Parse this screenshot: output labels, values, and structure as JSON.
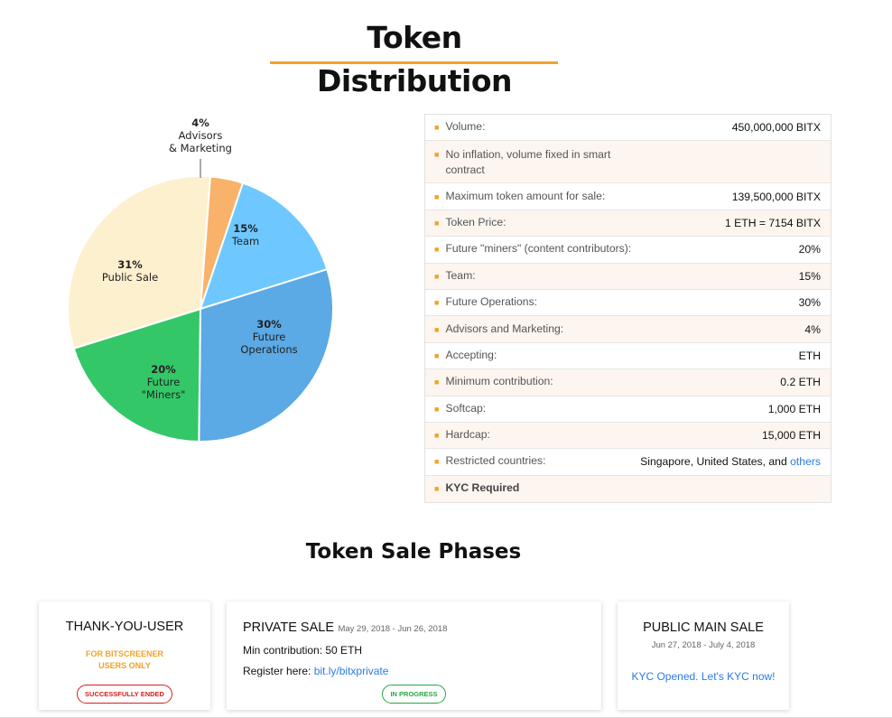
{
  "page_title": "Token Distribution",
  "chart_data": {
    "type": "pie",
    "slices": [
      {
        "pct": "4%",
        "value": 4,
        "lines": [
          "Advisors",
          "& Marketing"
        ],
        "color": "#f9b26a"
      },
      {
        "pct": "15%",
        "value": 15,
        "lines": [
          "Team"
        ],
        "color": "#6ec8ff"
      },
      {
        "pct": "30%",
        "value": 30,
        "lines": [
          "Future",
          "Operations"
        ],
        "color": "#5ba9e5"
      },
      {
        "pct": "20%",
        "value": 20,
        "lines": [
          "Future",
          "\"Miners\""
        ],
        "color": "#34c768"
      },
      {
        "pct": "31%",
        "value": 31,
        "lines": [
          "Public Sale"
        ],
        "color": "#fdf0cf"
      }
    ]
  },
  "info_table": [
    {
      "label": "Volume:",
      "value": "450,000,000 BITX"
    },
    {
      "label": "No inflation, volume fixed in smart contract",
      "value": ""
    },
    {
      "label": "Maximum token amount for sale:",
      "value": "139,500,000 BITX"
    },
    {
      "label": "Token Price:",
      "value": "1 ETH = 7154 BITX"
    },
    {
      "label": "Future \"miners\" (content contributors):",
      "value": "20%"
    },
    {
      "label": "Team:",
      "value": "15%"
    },
    {
      "label": "Future Operations:",
      "value": "30%"
    },
    {
      "label": "Advisors and Marketing:",
      "value": "4%"
    },
    {
      "label": "Accepting:",
      "value": "ETH"
    },
    {
      "label": "Minimum contribution:",
      "value": "0.2 ETH"
    },
    {
      "label": "Softcap:",
      "value": "1,000 ETH"
    },
    {
      "label": "Hardcap:",
      "value": "15,000 ETH"
    },
    {
      "label": "Restricted countries:",
      "value": "Singapore, United States, and",
      "link": "others"
    },
    {
      "label": "KYC Required",
      "value": ""
    }
  ],
  "phases": {
    "title": "Token Sale Phases",
    "card1": {
      "title": "THANK-YOU-USER",
      "note_line1": "FOR BITSCREENER",
      "note_line2": "USERS ONLY",
      "badge": "SUCCESSFULLY ENDED"
    },
    "card2": {
      "title": "PRIVATE SALE",
      "date": "May 29, 2018 - Jun 26, 2018",
      "min_contribution": "Min contribution: 50 ETH",
      "register_label": "Register here:",
      "register_link": "bit.ly/bitxprivate",
      "badge": "IN PROGRESS"
    },
    "card3": {
      "title": "PUBLIC MAIN SALE",
      "date": "Jun 27, 2018 - July 4, 2018",
      "link": "KYC Opened. Let's KYC now!"
    }
  }
}
